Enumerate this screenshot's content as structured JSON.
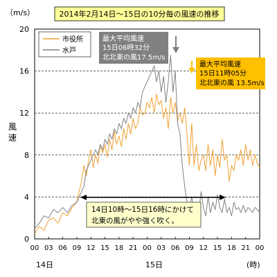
{
  "chart_data": {
    "type": "line",
    "title": "2014年2月14日～15日の10分毎の風速の推移",
    "y_unit": "（m/s）",
    "ylabel_chars": [
      "風",
      "速"
    ],
    "ylim": [
      0,
      20
    ],
    "y_ticks": [
      "0",
      "4",
      "8",
      "12",
      "16",
      "20"
    ],
    "x_ticks": [
      "00",
      "03",
      "06",
      "09",
      "12",
      "15",
      "18",
      "21",
      "00",
      "03",
      "06",
      "09",
      "12",
      "15",
      "18",
      "21",
      "00"
    ],
    "day_labels": [
      "14日",
      "15日"
    ],
    "x_unit": "(時)",
    "xlim": [
      0,
      48
    ],
    "grid": "horizontal dashed",
    "legend_position": "top-left",
    "series": [
      {
        "name": "市役所",
        "color": "#f0a030",
        "x": [
          0,
          1,
          2,
          3,
          4,
          5,
          6,
          7,
          8,
          9,
          9.5,
          10,
          10.5,
          11,
          11.5,
          12,
          12.5,
          13,
          13.5,
          14,
          14.5,
          15,
          15.5,
          16,
          16.5,
          17,
          17.5,
          18,
          18.5,
          19,
          19.5,
          20,
          20.5,
          21,
          21.5,
          22,
          22.5,
          23,
          23.5,
          24,
          24.5,
          25,
          25.5,
          26,
          26.5,
          27,
          27.5,
          28,
          28.5,
          29,
          29.5,
          30,
          30.5,
          31,
          31.5,
          32,
          32.5,
          33,
          33.5,
          34,
          34.5,
          35,
          35.5,
          36,
          36.5,
          37,
          37.5,
          38,
          38.5,
          39,
          39.5,
          40,
          40.5,
          41,
          41.5,
          42,
          42.5,
          43,
          43.5,
          44,
          44.5,
          45,
          45.5,
          46,
          46.5,
          47,
          47.5,
          48
        ],
        "values": [
          0.5,
          1.2,
          0.8,
          1.8,
          2.0,
          1.5,
          2.5,
          2.2,
          3.0,
          3.5,
          4.5,
          5.5,
          7.0,
          6.0,
          7.5,
          8.5,
          6.8,
          8.0,
          7.2,
          9.0,
          8.2,
          9.0,
          7.8,
          9.5,
          8.5,
          10.2,
          9.0,
          9.8,
          8.8,
          10.5,
          9.5,
          11.0,
          10.0,
          11.5,
          10.5,
          11.0,
          12.5,
          11.8,
          12.0,
          13.0,
          12.5,
          13.5,
          12.0,
          13.8,
          12.8,
          13.2,
          11.5,
          12.5,
          10.5,
          13.5,
          12.0,
          13.0,
          11.2,
          12.0,
          11.0,
          12.5,
          10.0,
          7.0,
          11.0,
          7.0,
          9.0,
          6.5,
          7.5,
          8.0,
          6.5,
          9.0,
          7.0,
          8.5,
          6.0,
          8.0,
          6.8,
          9.5,
          7.5,
          8.0,
          5.5,
          7.0,
          6.5,
          8.0,
          7.5,
          8.5,
          7.0,
          9.0,
          7.5,
          8.5,
          7.0,
          8.0,
          7.2,
          6.8
        ]
      },
      {
        "name": "水戸",
        "color": "#808080",
        "x": [
          0,
          1,
          2,
          3,
          4,
          5,
          6,
          7,
          8,
          9,
          9.5,
          10,
          10.5,
          11,
          11.5,
          12,
          12.5,
          13,
          13.5,
          14,
          14.5,
          15,
          15.5,
          16,
          16.5,
          17,
          17.5,
          18,
          18.5,
          19,
          19.5,
          20,
          20.5,
          21,
          21.5,
          22,
          22.5,
          23,
          23.5,
          24,
          24.5,
          25,
          25.5,
          26,
          26.5,
          27,
          27.5,
          28,
          28.5,
          29,
          29.5,
          30,
          30.5,
          31,
          31.5,
          32,
          32.5,
          33,
          33.5,
          34,
          34.5,
          35,
          35.5,
          36,
          36.5,
          37,
          37.5,
          38,
          38.5,
          39,
          39.5,
          40,
          40.5,
          41,
          41.5,
          42,
          42.5,
          43,
          43.5,
          44,
          44.5,
          45,
          45.5,
          46,
          46.5,
          47,
          47.5,
          48
        ],
        "values": [
          1.0,
          1.5,
          2.2,
          2.0,
          2.8,
          2.5,
          3.0,
          2.5,
          3.2,
          3.5,
          4.0,
          4.5,
          5.0,
          6.5,
          7.0,
          7.5,
          8.0,
          8.5,
          8.0,
          9.0,
          8.5,
          9.5,
          9.0,
          10.0,
          9.5,
          10.5,
          10.0,
          11.0,
          10.5,
          11.5,
          11.0,
          12.0,
          11.5,
          12.5,
          12.0,
          13.0,
          12.5,
          14.0,
          14.5,
          15.0,
          15.5,
          16.0,
          16.5,
          15.0,
          16.0,
          14.0,
          15.5,
          13.0,
          15.0,
          17.5,
          14.0,
          16.0,
          11.0,
          10.0,
          7.0,
          5.0,
          3.5,
          3.0,
          4.0,
          2.8,
          3.5,
          2.5,
          4.5,
          3.0,
          2.2,
          4.0,
          2.5,
          3.5,
          2.8,
          4.2,
          3.0,
          2.5,
          3.8,
          2.5,
          3.0,
          2.2,
          3.5,
          2.8,
          3.0,
          2.5,
          3.2,
          2.5,
          3.0,
          2.8,
          2.5,
          3.0,
          2.8,
          2.5
        ]
      }
    ],
    "annotations": {
      "mito_max": [
        "最大平均風速",
        "15日06時32分",
        "北北東の風17.5m/s"
      ],
      "city_max": [
        "最大平均風速",
        "15日11時05分",
        "北北東の風 13.5m/s"
      ],
      "period": [
        "14日10時～15日16時にかけて",
        "北東の風がやや強く吹く。"
      ]
    }
  }
}
